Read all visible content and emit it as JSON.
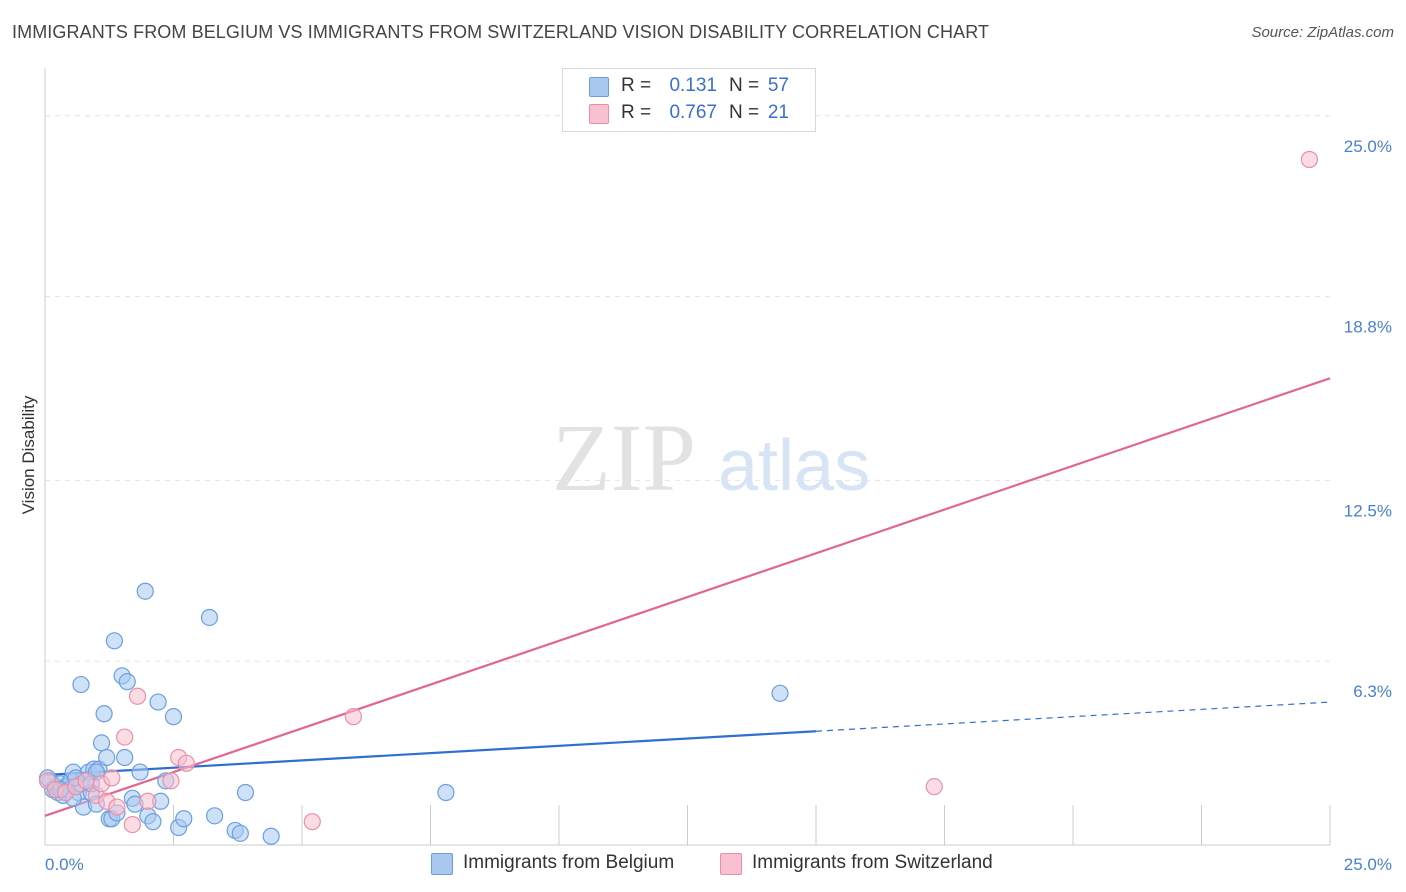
{
  "title": "IMMIGRANTS FROM BELGIUM VS IMMIGRANTS FROM SWITZERLAND VISION DISABILITY CORRELATION CHART",
  "source": "Source: ZipAtlas.com",
  "watermark": {
    "zip": "ZIP",
    "atlas": "atlas"
  },
  "legend": {
    "rows": [
      {
        "r_label": "R =",
        "r_value": "0.131",
        "n_label": "N =",
        "n_value": "57",
        "color": "#a8c8f0",
        "border": "#6a9fe0"
      },
      {
        "r_label": "R =",
        "r_value": "0.767",
        "n_label": "N =",
        "n_value": "21",
        "color": "#f8c0d0",
        "border": "#e890a8"
      }
    ]
  },
  "bottom_legend": [
    {
      "label": "Immigrants from Belgium",
      "color": "#a8c8f0",
      "border": "#6a9fe0"
    },
    {
      "label": "Immigrants from Switzerland",
      "color": "#f8c0d0",
      "border": "#e890a8"
    }
  ],
  "chart_data": {
    "type": "scatter",
    "title": "IMMIGRANTS FROM BELGIUM VS IMMIGRANTS FROM SWITZERLAND VISION DISABILITY CORRELATION CHART",
    "xlabel": "",
    "ylabel": "Vision Disability",
    "xlim": [
      0,
      25
    ],
    "ylim": [
      0,
      26.5
    ],
    "x_tick_labels": [
      "0.0%",
      "25.0%"
    ],
    "y_ticks": [
      6.3,
      12.5,
      18.8,
      25.0
    ],
    "y_tick_labels": [
      "6.3%",
      "12.5%",
      "18.8%",
      "25.0%"
    ],
    "grid": true,
    "series": [
      {
        "name": "Immigrants from Belgium",
        "color": "#6a9fe0",
        "fill": "#a8c8f0",
        "trend": {
          "x0": 0,
          "y0": 2.4,
          "x1": 15,
          "y1": 3.9,
          "dash_x1": 25,
          "dash_y1": 4.9,
          "color": "#2f6fd0"
        },
        "points": [
          [
            0.1,
            2.2
          ],
          [
            0.15,
            1.9
          ],
          [
            0.2,
            2.0
          ],
          [
            0.25,
            1.8
          ],
          [
            0.3,
            2.1
          ],
          [
            0.35,
            1.7
          ],
          [
            0.4,
            2.0
          ],
          [
            0.45,
            1.9
          ],
          [
            0.5,
            2.2
          ],
          [
            0.55,
            2.5
          ],
          [
            0.6,
            2.0
          ],
          [
            0.65,
            1.8
          ],
          [
            0.7,
            2.1
          ],
          [
            0.75,
            1.3
          ],
          [
            0.8,
            2.2
          ],
          [
            0.85,
            2.5
          ],
          [
            0.9,
            1.8
          ],
          [
            0.95,
            2.6
          ],
          [
            1.0,
            1.4
          ],
          [
            1.05,
            2.6
          ],
          [
            1.1,
            3.5
          ],
          [
            1.15,
            4.5
          ],
          [
            1.2,
            3.0
          ],
          [
            1.25,
            0.9
          ],
          [
            1.3,
            0.9
          ],
          [
            1.35,
            7.0
          ],
          [
            1.4,
            1.1
          ],
          [
            1.5,
            5.8
          ],
          [
            1.55,
            3.0
          ],
          [
            1.6,
            5.6
          ],
          [
            1.7,
            1.6
          ],
          [
            1.75,
            1.4
          ],
          [
            1.85,
            2.5
          ],
          [
            1.95,
            8.7
          ],
          [
            2.0,
            1.0
          ],
          [
            2.1,
            0.8
          ],
          [
            2.2,
            4.9
          ],
          [
            2.25,
            1.5
          ],
          [
            2.35,
            2.2
          ],
          [
            2.5,
            4.4
          ],
          [
            2.6,
            0.6
          ],
          [
            2.7,
            0.9
          ],
          [
            3.2,
            7.8
          ],
          [
            3.3,
            1.0
          ],
          [
            3.7,
            0.5
          ],
          [
            3.8,
            0.4
          ],
          [
            3.9,
            1.8
          ],
          [
            4.4,
            0.3
          ],
          [
            7.8,
            1.8
          ],
          [
            14.3,
            5.2
          ],
          [
            0.05,
            2.3
          ],
          [
            0.55,
            1.6
          ],
          [
            0.9,
            2.1
          ],
          [
            1.0,
            2.5
          ],
          [
            0.3,
            1.9
          ],
          [
            0.6,
            2.3
          ],
          [
            0.7,
            5.5
          ]
        ]
      },
      {
        "name": "Immigrants from Switzerland",
        "color": "#e890a8",
        "fill": "#f8c0d0",
        "trend": {
          "x0": 0,
          "y0": 1.0,
          "x1": 25,
          "y1": 16.0,
          "color": "#e06890"
        },
        "points": [
          [
            0.05,
            2.2
          ],
          [
            0.2,
            1.9
          ],
          [
            0.4,
            1.8
          ],
          [
            0.6,
            2.0
          ],
          [
            0.8,
            2.2
          ],
          [
            1.0,
            1.7
          ],
          [
            1.1,
            2.1
          ],
          [
            1.2,
            1.5
          ],
          [
            1.3,
            2.3
          ],
          [
            1.4,
            1.3
          ],
          [
            1.55,
            3.7
          ],
          [
            1.7,
            0.7
          ],
          [
            1.8,
            5.1
          ],
          [
            2.0,
            1.5
          ],
          [
            2.45,
            2.2
          ],
          [
            2.6,
            3.0
          ],
          [
            2.75,
            2.8
          ],
          [
            5.2,
            0.8
          ],
          [
            6.0,
            4.4
          ],
          [
            17.3,
            2.0
          ],
          [
            24.6,
            23.5
          ]
        ]
      }
    ]
  }
}
